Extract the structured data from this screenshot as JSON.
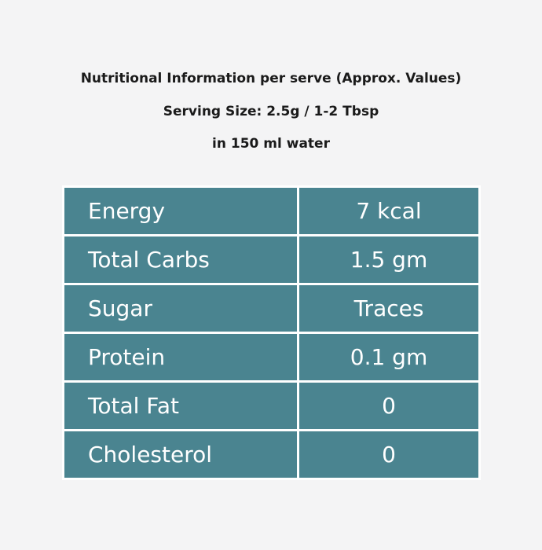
{
  "header": {
    "title": "Nutritional Information per serve (Approx. Values)",
    "serving_size": "Serving Size: 2.5g / 1-2 Tbsp",
    "dilution": "in 150 ml water"
  },
  "table": {
    "rows": [
      [
        "Energy",
        "7 kcal"
      ],
      [
        "Total Carbs",
        "1.5 gm"
      ],
      [
        "Sugar",
        "Traces"
      ],
      [
        "Protein",
        "0.1 gm"
      ],
      [
        "Total Fat",
        "0"
      ],
      [
        "Cholesterol",
        "0"
      ]
    ]
  }
}
